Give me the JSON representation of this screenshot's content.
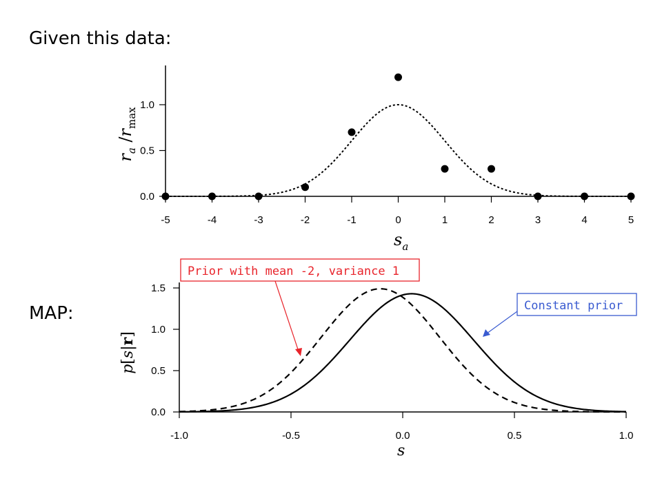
{
  "slide": {
    "heading_top": "Given this data:",
    "heading_bottom": "MAP:"
  },
  "annotations": {
    "prior_label": "Prior with mean -2, variance 1",
    "prior_color": "#e8242b",
    "constant_label": "Constant prior",
    "constant_color": "#3a5bd0"
  },
  "chart_data": [
    {
      "type": "scatter",
      "x": [
        -5,
        -4,
        -3,
        -2,
        -1,
        0,
        1,
        2,
        3,
        4,
        5
      ],
      "y": [
        0.0,
        0.0,
        0.0,
        0.1,
        0.7,
        1.3,
        0.3,
        0.3,
        0.0,
        0.0,
        0.0
      ],
      "tuning_curve": {
        "style": "dotted",
        "shape": "gaussian",
        "peak": 1.0,
        "center": 0,
        "sigma": 1.0
      },
      "xticks": [
        "-5",
        "-4",
        "-3",
        "-2",
        "-1",
        "0",
        "1",
        "2",
        "3",
        "4",
        "5"
      ],
      "yticks": [
        "0.0",
        "0.5",
        "1.0"
      ],
      "xlim": [
        -5,
        5
      ],
      "ylim": [
        0,
        1.35
      ],
      "xlabel": "s_a",
      "ylabel": "r_a / r_max"
    },
    {
      "type": "line",
      "series": [
        {
          "style": "solid",
          "shape": "gaussian",
          "center": 0.04,
          "sigma": 0.278,
          "peak": 1.43
        },
        {
          "style": "dashed",
          "shape": "gaussian",
          "center": -0.1,
          "sigma": 0.265,
          "peak": 1.49
        }
      ],
      "xticks": [
        "-1.0",
        "-0.5",
        "0.0",
        "0.5",
        "1.0"
      ],
      "yticks": [
        "0.0",
        "0.5",
        "1.0",
        "1.5"
      ],
      "xlim": [
        -1,
        1
      ],
      "ylim": [
        0,
        1.5
      ],
      "xlabel": "s",
      "ylabel": "p[s|r]"
    }
  ]
}
